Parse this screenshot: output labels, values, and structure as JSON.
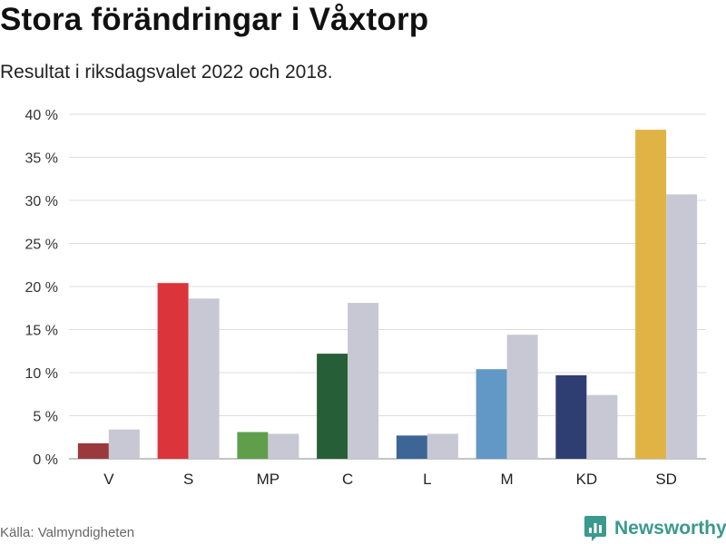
{
  "header": {
    "title": "Stora förändringar i Våxtorp",
    "subtitle": "Resultat i riksdagsvalet 2022 och 2018."
  },
  "footer": {
    "source": "Källa: Valmyndigheten",
    "brand": "Newsworthy",
    "brand_icon": "newsworthy-logo-icon",
    "brand_color": "#3a9a8d"
  },
  "chart_data": {
    "type": "bar",
    "categories": [
      "V",
      "S",
      "MP",
      "C",
      "L",
      "M",
      "KD",
      "SD"
    ],
    "series": [
      {
        "values": [
          1.8,
          20.4,
          3.1,
          12.2,
          2.7,
          10.4,
          9.7,
          38.2
        ],
        "colors": [
          "#9b3a3c",
          "#dc343b",
          "#5f9e4b",
          "#265e37",
          "#3d6595",
          "#6198c6",
          "#2f3e72",
          "#dfb444"
        ]
      },
      {
        "values": [
          3.4,
          18.6,
          2.9,
          18.1,
          2.9,
          14.4,
          7.4,
          30.7
        ],
        "color": "#c8c8d4"
      }
    ],
    "ylim": [
      0,
      40
    ],
    "yticks": [
      0,
      5,
      10,
      15,
      20,
      25,
      30,
      35,
      40
    ],
    "ytick_labels": [
      "0 %",
      "5 %",
      "10 %",
      "15 %",
      "20 %",
      "25 %",
      "30 %",
      "35 %",
      "40 %"
    ],
    "grid": true,
    "xlabel": "",
    "ylabel": ""
  }
}
